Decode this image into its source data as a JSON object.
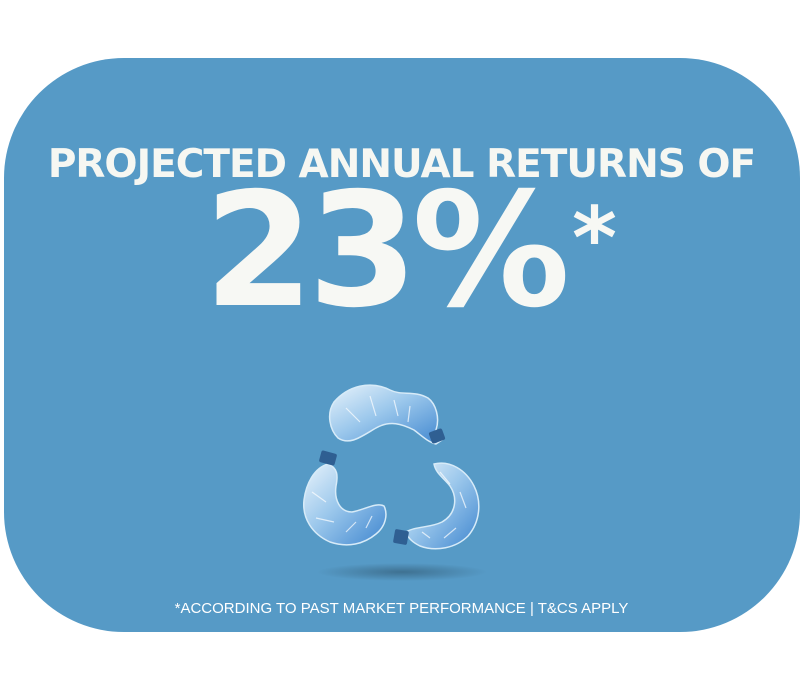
{
  "card": {
    "background_color": "#569ac6",
    "text_color": "#f7f8f4"
  },
  "headline": "PROJECTED ANNUAL RETURNS OF",
  "big_number": "23%",
  "asterisk": "*",
  "graphic": {
    "icon": "recycle-bottles-icon"
  },
  "footnote": "*ACCORDING TO PAST MARKET PERFORMANCE | T&CS APPLY"
}
